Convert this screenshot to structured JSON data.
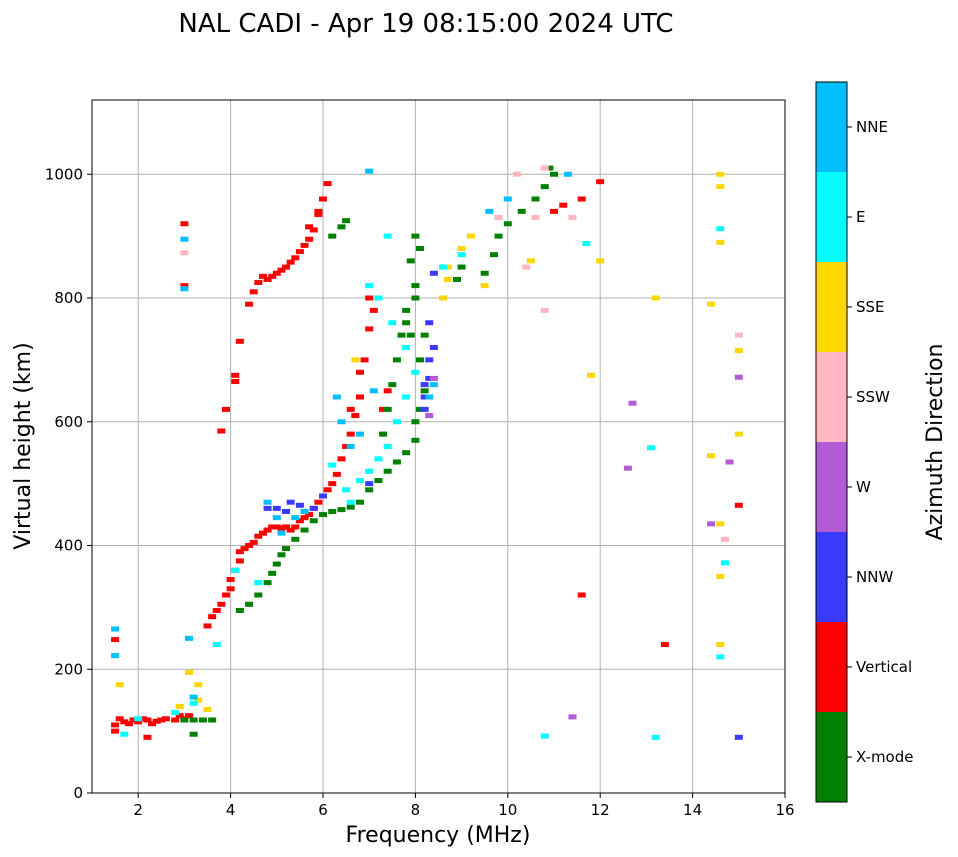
{
  "chart_data": {
    "type": "scatter",
    "title": "NAL CADI - Apr 19 08:15:00 2024 UTC",
    "xlabel": "Frequency (MHz)",
    "ylabel": "Virtual height (km)",
    "xlim": [
      1,
      16
    ],
    "ylim": [
      0,
      1120
    ],
    "xticks": [
      2,
      4,
      6,
      8,
      10,
      12,
      14,
      16
    ],
    "yticks": [
      0,
      200,
      400,
      600,
      800,
      1000
    ],
    "grid": true,
    "colorbar": {
      "label": "Azimuth Direction",
      "categories": [
        {
          "name": "X-mode",
          "color": "#008000"
        },
        {
          "name": "Vertical",
          "color": "#ff0000"
        },
        {
          "name": "NNW",
          "color": "#3a3aff"
        },
        {
          "name": "W",
          "color": "#b35ad6"
        },
        {
          "name": "SSW",
          "color": "#ffb6c1"
        },
        {
          "name": "SSE",
          "color": "#ffd700"
        },
        {
          "name": "E",
          "color": "#00ffff"
        },
        {
          "name": "NNE",
          "color": "#00bfff"
        }
      ]
    },
    "series": [
      {
        "name": "Vertical",
        "color": "#ff0000",
        "points": [
          [
            1.5,
            100
          ],
          [
            1.5,
            110
          ],
          [
            1.6,
            120
          ],
          [
            1.7,
            115
          ],
          [
            1.8,
            112
          ],
          [
            1.9,
            118
          ],
          [
            2.0,
            115
          ],
          [
            2.1,
            120
          ],
          [
            2.2,
            118
          ],
          [
            2.3,
            112
          ],
          [
            2.4,
            116
          ],
          [
            2.5,
            118
          ],
          [
            2.6,
            120
          ],
          [
            2.8,
            118
          ],
          [
            2.9,
            125
          ],
          [
            3.0,
            120
          ],
          [
            3.1,
            125
          ],
          [
            2.2,
            90
          ],
          [
            1.5,
            248
          ],
          [
            3.0,
            920
          ],
          [
            3.0,
            820
          ],
          [
            3.5,
            270
          ],
          [
            3.6,
            285
          ],
          [
            3.7,
            295
          ],
          [
            3.8,
            305
          ],
          [
            3.9,
            320
          ],
          [
            4.0,
            330
          ],
          [
            4.0,
            345
          ],
          [
            4.1,
            360
          ],
          [
            4.2,
            375
          ],
          [
            4.2,
            390
          ],
          [
            4.3,
            395
          ],
          [
            4.4,
            400
          ],
          [
            4.5,
            405
          ],
          [
            4.6,
            415
          ],
          [
            4.7,
            420
          ],
          [
            4.8,
            425
          ],
          [
            4.9,
            430
          ],
          [
            5.0,
            430
          ],
          [
            5.1,
            428
          ],
          [
            5.2,
            430
          ],
          [
            5.3,
            425
          ],
          [
            5.4,
            430
          ],
          [
            5.5,
            440
          ],
          [
            5.6,
            445
          ],
          [
            5.7,
            450
          ],
          [
            5.8,
            460
          ],
          [
            5.9,
            470
          ],
          [
            6.0,
            480
          ],
          [
            6.1,
            490
          ],
          [
            6.2,
            500
          ],
          [
            6.3,
            515
          ],
          [
            6.4,
            540
          ],
          [
            6.5,
            560
          ],
          [
            6.6,
            580
          ],
          [
            6.7,
            610
          ],
          [
            6.8,
            640
          ],
          [
            6.9,
            700
          ],
          [
            7.0,
            750
          ],
          [
            7.0,
            800
          ],
          [
            7.1,
            780
          ],
          [
            3.8,
            585
          ],
          [
            3.9,
            620
          ],
          [
            4.1,
            665
          ],
          [
            4.1,
            675
          ],
          [
            4.2,
            730
          ],
          [
            4.4,
            790
          ],
          [
            4.5,
            810
          ],
          [
            4.6,
            825
          ],
          [
            4.7,
            835
          ],
          [
            4.8,
            830
          ],
          [
            4.9,
            835
          ],
          [
            5.0,
            840
          ],
          [
            5.1,
            845
          ],
          [
            5.2,
            850
          ],
          [
            5.3,
            858
          ],
          [
            5.4,
            865
          ],
          [
            5.5,
            875
          ],
          [
            5.6,
            885
          ],
          [
            5.7,
            895
          ],
          [
            5.8,
            910
          ],
          [
            5.9,
            935
          ],
          [
            6.0,
            960
          ],
          [
            6.1,
            985
          ],
          [
            5.7,
            915
          ],
          [
            5.9,
            940
          ],
          [
            7.3,
            620
          ],
          [
            7.4,
            650
          ],
          [
            6.6,
            620
          ],
          [
            6.8,
            680
          ],
          [
            11.6,
            320
          ],
          [
            13.4,
            240
          ],
          [
            15.0,
            465
          ],
          [
            11.2,
            950
          ],
          [
            11.6,
            960
          ],
          [
            11.0,
            940
          ],
          [
            12.0,
            988
          ]
        ]
      },
      {
        "name": "X-mode",
        "color": "#008000",
        "points": [
          [
            3.0,
            118
          ],
          [
            3.2,
            118
          ],
          [
            3.4,
            118
          ],
          [
            3.6,
            118
          ],
          [
            3.2,
            95
          ],
          [
            4.2,
            295
          ],
          [
            4.4,
            305
          ],
          [
            4.6,
            320
          ],
          [
            4.8,
            340
          ],
          [
            4.9,
            355
          ],
          [
            5.0,
            370
          ],
          [
            5.1,
            385
          ],
          [
            5.2,
            395
          ],
          [
            5.4,
            410
          ],
          [
            5.6,
            425
          ],
          [
            5.8,
            440
          ],
          [
            6.0,
            450
          ],
          [
            6.2,
            455
          ],
          [
            6.4,
            458
          ],
          [
            6.6,
            462
          ],
          [
            6.8,
            470
          ],
          [
            7.0,
            490
          ],
          [
            7.2,
            505
          ],
          [
            7.4,
            520
          ],
          [
            7.6,
            535
          ],
          [
            7.8,
            550
          ],
          [
            8.0,
            570
          ],
          [
            8.0,
            600
          ],
          [
            8.1,
            620
          ],
          [
            8.2,
            650
          ],
          [
            7.3,
            580
          ],
          [
            7.4,
            620
          ],
          [
            7.5,
            660
          ],
          [
            7.6,
            700
          ],
          [
            7.7,
            740
          ],
          [
            7.8,
            780
          ],
          [
            8.0,
            800
          ],
          [
            7.8,
            760
          ],
          [
            7.9,
            740
          ],
          [
            8.1,
            700
          ],
          [
            8.2,
            740
          ],
          [
            8.0,
            820
          ],
          [
            7.9,
            860
          ],
          [
            8.1,
            880
          ],
          [
            8.0,
            900
          ],
          [
            6.2,
            900
          ],
          [
            6.4,
            915
          ],
          [
            6.5,
            925
          ],
          [
            8.9,
            830
          ],
          [
            9.0,
            850
          ],
          [
            9.5,
            840
          ],
          [
            9.7,
            870
          ],
          [
            9.8,
            900
          ],
          [
            10.0,
            920
          ],
          [
            10.3,
            940
          ],
          [
            10.6,
            960
          ],
          [
            10.8,
            980
          ],
          [
            11.0,
            1000
          ],
          [
            10.9,
            1010
          ]
        ]
      },
      {
        "name": "NNW",
        "color": "#3a3aff",
        "points": [
          [
            4.8,
            460
          ],
          [
            5.0,
            460
          ],
          [
            5.2,
            455
          ],
          [
            5.3,
            470
          ],
          [
            5.5,
            465
          ],
          [
            5.8,
            460
          ],
          [
            6.0,
            480
          ],
          [
            7.0,
            500
          ],
          [
            8.2,
            620
          ],
          [
            8.2,
            640
          ],
          [
            8.2,
            660
          ],
          [
            8.3,
            670
          ],
          [
            8.3,
            700
          ],
          [
            8.4,
            720
          ],
          [
            8.3,
            760
          ],
          [
            8.4,
            840
          ],
          [
            15.0,
            90
          ]
        ]
      },
      {
        "name": "W",
        "color": "#b35ad6",
        "points": [
          [
            8.4,
            670
          ],
          [
            8.3,
            610
          ],
          [
            12.6,
            525
          ],
          [
            12.7,
            630
          ],
          [
            14.8,
            535
          ],
          [
            15.0,
            672
          ],
          [
            14.4,
            435
          ],
          [
            11.4,
            123
          ]
        ]
      },
      {
        "name": "SSW",
        "color": "#ffb6c1",
        "points": [
          [
            3.0,
            873
          ],
          [
            10.8,
            780
          ],
          [
            10.6,
            930
          ],
          [
            10.4,
            850
          ],
          [
            11.4,
            930
          ],
          [
            14.7,
            410
          ],
          [
            15.0,
            740
          ],
          [
            9.8,
            930
          ],
          [
            10.2,
            1000
          ],
          [
            10.8,
            1010
          ]
        ]
      },
      {
        "name": "SSE",
        "color": "#ffd700",
        "points": [
          [
            1.6,
            175
          ],
          [
            2.9,
            140
          ],
          [
            3.1,
            195
          ],
          [
            3.3,
            150
          ],
          [
            3.3,
            175
          ],
          [
            3.5,
            135
          ],
          [
            6.7,
            700
          ],
          [
            8.6,
            800
          ],
          [
            8.7,
            830
          ],
          [
            8.7,
            850
          ],
          [
            9.0,
            880
          ],
          [
            9.2,
            900
          ],
          [
            9.5,
            820
          ],
          [
            10.5,
            860
          ],
          [
            11.8,
            675
          ],
          [
            12.0,
            860
          ],
          [
            13.2,
            800
          ],
          [
            14.4,
            790
          ],
          [
            14.4,
            545
          ],
          [
            14.6,
            350
          ],
          [
            14.6,
            240
          ],
          [
            14.6,
            435
          ],
          [
            14.6,
            890
          ],
          [
            14.6,
            980
          ],
          [
            14.6,
            1000
          ],
          [
            15.0,
            715
          ],
          [
            15.0,
            580
          ]
        ]
      },
      {
        "name": "E",
        "color": "#00ffff",
        "points": [
          [
            1.7,
            95
          ],
          [
            2.0,
            120
          ],
          [
            2.8,
            130
          ],
          [
            3.2,
            145
          ],
          [
            3.7,
            240
          ],
          [
            4.1,
            360
          ],
          [
            4.6,
            340
          ],
          [
            6.2,
            530
          ],
          [
            6.5,
            490
          ],
          [
            6.6,
            470
          ],
          [
            6.8,
            505
          ],
          [
            7.0,
            520
          ],
          [
            7.2,
            540
          ],
          [
            7.4,
            560
          ],
          [
            7.6,
            600
          ],
          [
            7.8,
            640
          ],
          [
            8.0,
            680
          ],
          [
            7.8,
            720
          ],
          [
            7.5,
            760
          ],
          [
            7.2,
            800
          ],
          [
            7.0,
            820
          ],
          [
            8.6,
            850
          ],
          [
            9.0,
            870
          ],
          [
            10.8,
            92
          ],
          [
            13.2,
            90
          ],
          [
            13.1,
            558
          ],
          [
            14.6,
            220
          ],
          [
            14.7,
            372
          ],
          [
            14.6,
            912
          ],
          [
            11.7,
            888
          ],
          [
            7.4,
            900
          ]
        ]
      },
      {
        "name": "NNE",
        "color": "#00bfff",
        "points": [
          [
            1.5,
            265
          ],
          [
            1.5,
            222
          ],
          [
            3.0,
            895
          ],
          [
            3.0,
            815
          ],
          [
            3.1,
            250
          ],
          [
            3.2,
            155
          ],
          [
            4.8,
            470
          ],
          [
            5.0,
            445
          ],
          [
            5.1,
            420
          ],
          [
            5.4,
            445
          ],
          [
            5.6,
            455
          ],
          [
            6.3,
            640
          ],
          [
            6.4,
            600
          ],
          [
            6.6,
            560
          ],
          [
            6.8,
            580
          ],
          [
            7.1,
            650
          ],
          [
            8.3,
            640
          ],
          [
            8.4,
            660
          ],
          [
            9.6,
            940
          ],
          [
            10.0,
            960
          ],
          [
            11.3,
            1000
          ],
          [
            7.0,
            1005
          ]
        ]
      }
    ]
  }
}
